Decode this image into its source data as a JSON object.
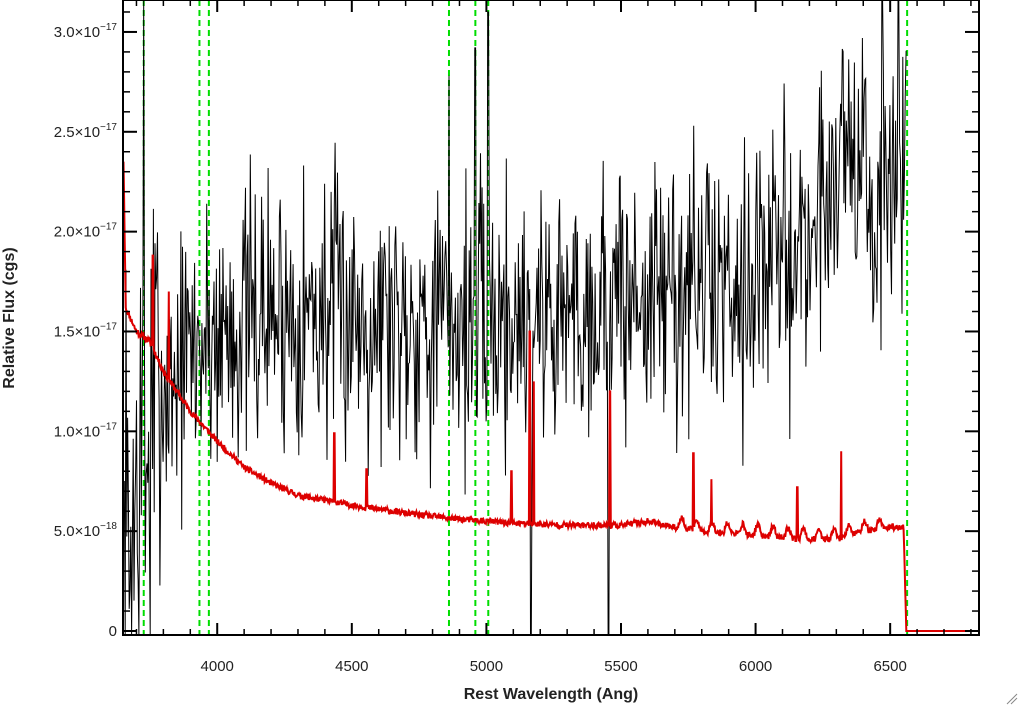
{
  "chart_data": {
    "type": "line",
    "title": "",
    "xlabel": "Rest Wavelength (Ang)",
    "ylabel": "Relative Flux (cgs)",
    "xlim": [
      3650,
      6830
    ],
    "ylim": [
      -2e-19,
      3.16e-17
    ],
    "xticks": [
      {
        "value": 4000,
        "label": "4000"
      },
      {
        "value": 4500,
        "label": "4500"
      },
      {
        "value": 5000,
        "label": "5000"
      },
      {
        "value": 5500,
        "label": "5500"
      },
      {
        "value": 6000,
        "label": "6000"
      },
      {
        "value": 6500,
        "label": "6500"
      }
    ],
    "yticks": [
      {
        "value": 0,
        "mant": "0",
        "exp": ""
      },
      {
        "value": 5e-18,
        "mant": "5.0×10",
        "exp": "−18"
      },
      {
        "value": 1e-17,
        "mant": "1.0×10",
        "exp": "−17"
      },
      {
        "value": 1.5e-17,
        "mant": "1.5×10",
        "exp": "−17"
      },
      {
        "value": 2e-17,
        "mant": "2.0×10",
        "exp": "−17"
      },
      {
        "value": 2.5e-17,
        "mant": "2.5×10",
        "exp": "−17"
      },
      {
        "value": 3e-17,
        "mant": "3.0×10",
        "exp": "−17"
      }
    ],
    "vlines": [
      3727,
      3934,
      3969,
      4861,
      4959,
      5007,
      6563
    ],
    "colors": {
      "observed": "#000000",
      "model": "#dd0000",
      "lines": "#00dd00"
    },
    "series": [
      {
        "key": "observed",
        "seed": 7,
        "step": 3,
        "scale": 1e-17,
        "noise": 0.35,
        "anchors": [
          [
            3650,
            0.2
          ],
          [
            3700,
            0.6
          ],
          [
            3800,
            1.2
          ],
          [
            3900,
            1.4
          ],
          [
            4000,
            1.5
          ],
          [
            4200,
            1.6
          ],
          [
            4500,
            1.6
          ],
          [
            5000,
            1.55
          ],
          [
            5500,
            1.65
          ],
          [
            6000,
            1.8
          ],
          [
            6200,
            1.95
          ],
          [
            6300,
            2.35
          ],
          [
            6350,
            2.55
          ],
          [
            6400,
            2.25
          ],
          [
            6450,
            1.95
          ],
          [
            6500,
            2.2
          ],
          [
            6550,
            2.4
          ]
        ],
        "end": 6560,
        "spikes": [
          [
            3727,
            3.16
          ],
          [
            4861,
            2.78
          ],
          [
            4959,
            2.92
          ],
          [
            5007,
            3.1
          ],
          [
            5165,
            -0.02
          ],
          [
            5453,
            -0.02
          ],
          [
            6470,
            3.16
          ],
          [
            6530,
            3.16
          ]
        ]
      },
      {
        "key": "model",
        "scale": 1e-17,
        "anchors": [
          [
            3652,
            2.35
          ],
          [
            3660,
            1.62
          ],
          [
            3700,
            1.5
          ],
          [
            3750,
            1.45
          ],
          [
            3800,
            1.3
          ],
          [
            3900,
            1.1
          ],
          [
            4000,
            0.95
          ],
          [
            4100,
            0.82
          ],
          [
            4200,
            0.74
          ],
          [
            4300,
            0.68
          ],
          [
            4500,
            0.63
          ],
          [
            4700,
            0.59
          ],
          [
            4900,
            0.56
          ],
          [
            5100,
            0.54
          ],
          [
            5300,
            0.53
          ],
          [
            5500,
            0.53
          ],
          [
            5600,
            0.55
          ],
          [
            5700,
            0.52
          ],
          [
            5800,
            0.5
          ],
          [
            6000,
            0.48
          ],
          [
            6200,
            0.46
          ],
          [
            6300,
            0.46
          ],
          [
            6400,
            0.5
          ],
          [
            6500,
            0.52
          ],
          [
            6550,
            0.52
          ],
          [
            6560,
            0.0
          ],
          [
            6830,
            0.0
          ]
        ],
        "emissions": [
          [
            3761,
            1.88
          ],
          [
            3820,
            1.7
          ],
          [
            4435,
            0.99
          ],
          [
            4555,
            0.81
          ],
          [
            5093,
            0.8
          ],
          [
            5161,
            1.5
          ],
          [
            5176,
            1.25
          ],
          [
            5459,
            1.2
          ],
          [
            5769,
            0.89
          ],
          [
            5836,
            0.76
          ],
          [
            6155,
            0.72
          ],
          [
            6318,
            0.9
          ]
        ]
      }
    ]
  }
}
